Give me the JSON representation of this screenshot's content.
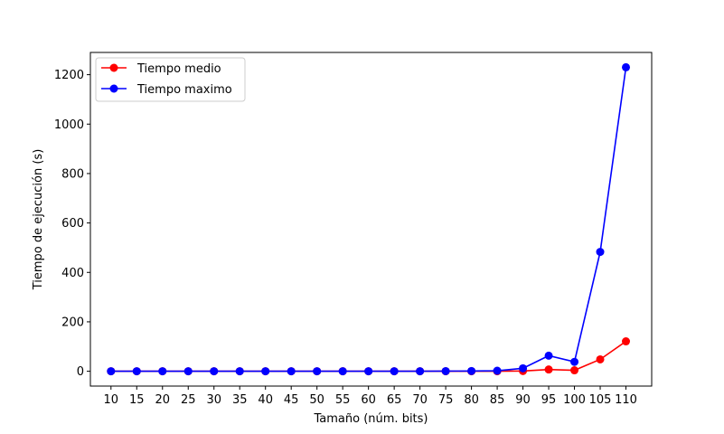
{
  "chart_data": {
    "type": "line",
    "title": "",
    "xlabel": "Tamaño (núm. bits)",
    "ylabel": "Tiempo de ejecución (s)",
    "x": [
      10,
      15,
      20,
      25,
      30,
      35,
      40,
      45,
      50,
      55,
      60,
      65,
      70,
      75,
      80,
      85,
      90,
      95,
      100,
      105,
      110
    ],
    "x_ticks": [
      "10",
      "15",
      "20",
      "25",
      "30",
      "35",
      "40",
      "45",
      "50",
      "55",
      "60",
      "65",
      "70",
      "75",
      "80",
      "85",
      "90",
      "95",
      "100",
      "105",
      "110"
    ],
    "xlim": [
      6,
      115
    ],
    "ylim": [
      -60,
      1290
    ],
    "y_ticks": [
      0,
      200,
      400,
      600,
      800,
      1000,
      1200
    ],
    "grid": false,
    "legend_position": "top-left",
    "series": [
      {
        "name": "Tiempo medio",
        "color": "#ff0000",
        "values": [
          0,
          0,
          0,
          0,
          0,
          0,
          0,
          0,
          0,
          0,
          0,
          0,
          0,
          0,
          0,
          0,
          1,
          7,
          4,
          48,
          121
        ]
      },
      {
        "name": "Tiempo maximo",
        "color": "#0000ff",
        "values": [
          0,
          0,
          0,
          0,
          0,
          0,
          0,
          0,
          0,
          0,
          0,
          0,
          0,
          0.5,
          1,
          2,
          12,
          63,
          38,
          483,
          1230
        ]
      }
    ]
  }
}
